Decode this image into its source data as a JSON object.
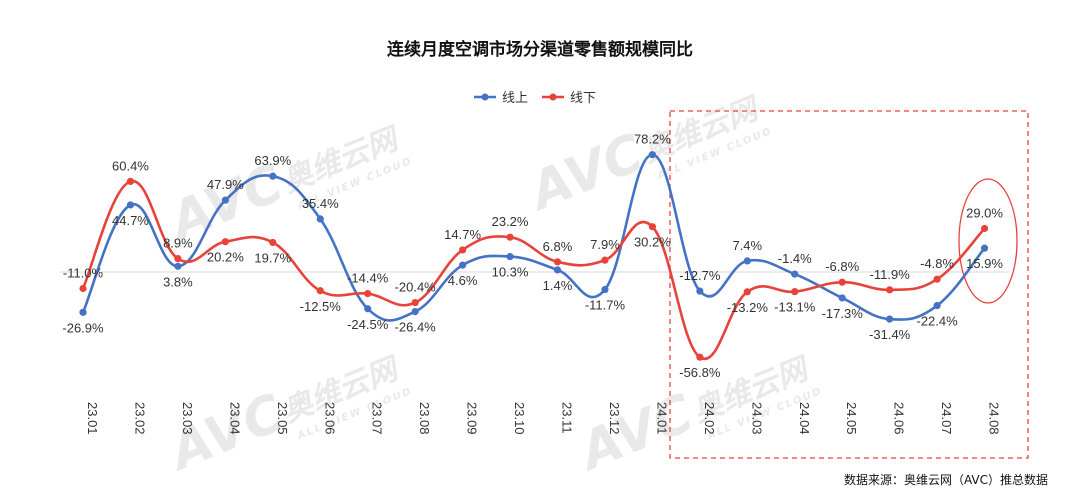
{
  "chart_data": {
    "type": "line",
    "title": "连续月度空调市场分渠道零售额规模同比",
    "categories": [
      "23.01",
      "23.02",
      "23.03",
      "23.04",
      "23.05",
      "23.06",
      "23.07",
      "23.08",
      "23.09",
      "23.10",
      "23.11",
      "23.12",
      "24.01",
      "24.02",
      "24.03",
      "24.04",
      "24.05",
      "24.06",
      "24.07",
      "24.08"
    ],
    "series": [
      {
        "name": "线上",
        "color": "#4472C4",
        "values": [
          -26.9,
          44.7,
          3.8,
          47.9,
          63.9,
          35.4,
          -24.5,
          -26.4,
          4.6,
          10.3,
          1.4,
          -11.7,
          78.2,
          -12.7,
          7.4,
          -1.4,
          -17.3,
          -31.4,
          -22.4,
          15.9
        ],
        "labels": [
          "-26.9%",
          "44.7%",
          "3.8%",
          "47.9%",
          "63.9%",
          "35.4%",
          "-24.5%",
          "-26.4%",
          "4.6%",
          "10.3%",
          "1.4%",
          "-11.7%",
          "78.2%",
          "-12.7%",
          "7.4%",
          "-1.4%",
          "-17.3%",
          "-31.4%",
          "-22.4%",
          "15.9%"
        ]
      },
      {
        "name": "线下",
        "color": "#E8433B",
        "values": [
          -11.0,
          60.4,
          8.9,
          20.2,
          19.7,
          -12.5,
          -14.4,
          -20.4,
          14.7,
          23.2,
          6.8,
          7.9,
          30.2,
          -56.8,
          -13.2,
          -13.1,
          -6.8,
          -11.9,
          -4.8,
          29.0
        ],
        "labels": [
          "-11.0%",
          "60.4%",
          "8.9%",
          "20.2%",
          "19.7%",
          "-12.5%",
          "-14.4%",
          "-20.4%",
          "14.7%",
          "23.2%",
          "6.8%",
          "7.9%",
          "30.2%",
          "-56.8%",
          "-13.2%",
          "-13.1%",
          "-6.8%",
          "-11.9%",
          "-4.8%",
          "29.0%"
        ]
      }
    ],
    "legend_position": "top-center",
    "grid": false,
    "highlight": {
      "from": "24.02",
      "to": "24.08",
      "border_color": "#E8433B",
      "style": "dashed"
    },
    "circled_point": {
      "category": "24.08",
      "color": "#E8433B"
    }
  },
  "source": "数据来源：奥维云网（AVC）推总数据",
  "watermark": {
    "logo": "AVC",
    "cn": "奥维云网",
    "en": "ALL VIEW CLOUD"
  }
}
